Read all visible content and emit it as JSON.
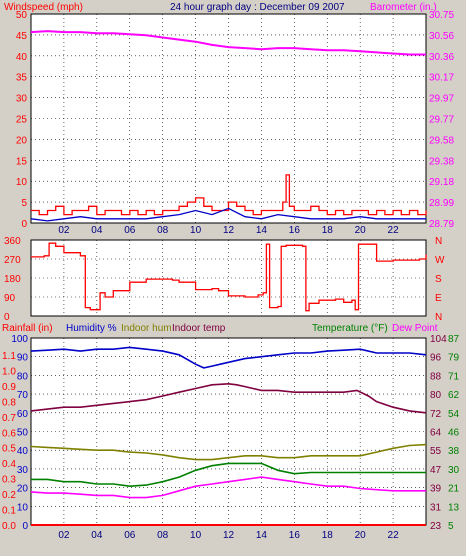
{
  "chart_data": [
    {
      "type": "line",
      "title": "24 hour graph day : December 09 2007",
      "left_axis_label": "Windspeed (mph)",
      "right_axis_label": "Barometer (in.)",
      "x_ticks": [
        "02",
        "04",
        "06",
        "08",
        "10",
        "12",
        "14",
        "16",
        "18",
        "20",
        "22"
      ],
      "left_ticks": [
        "0",
        "5",
        "10",
        "15",
        "20",
        "25",
        "30",
        "35",
        "40",
        "45",
        "50"
      ],
      "right_ticks": [
        "28.79",
        "28.99",
        "29.18",
        "29.38",
        "29.58",
        "29.77",
        "29.97",
        "30.17",
        "30.36",
        "30.56",
        "30.75"
      ],
      "left_range": [
        0,
        50
      ],
      "right_range": [
        28.79,
        30.75
      ],
      "x_range": [
        0,
        24
      ],
      "colors": {
        "wind_gust": "#ff0000",
        "wind_avg": "#0000c8",
        "barometer": "#ff00ff"
      },
      "series": [
        {
          "key": "barometer",
          "axis": "right",
          "x": [
            0,
            1,
            2,
            3,
            4,
            5,
            6,
            7,
            8,
            9,
            10,
            11,
            12,
            13,
            14,
            15,
            16,
            17,
            18,
            19,
            20,
            21,
            22,
            23,
            24
          ],
          "y": [
            30.58,
            30.59,
            30.58,
            30.58,
            30.57,
            30.57,
            30.56,
            30.55,
            30.53,
            30.51,
            30.49,
            30.46,
            30.44,
            30.43,
            30.42,
            30.43,
            30.43,
            30.42,
            30.41,
            30.41,
            30.4,
            30.39,
            30.38,
            30.37,
            30.37
          ]
        },
        {
          "key": "wind_gust",
          "axis": "left",
          "x": [
            0,
            0.5,
            1,
            1.5,
            2,
            2.5,
            3,
            3.5,
            4,
            4.5,
            5,
            5.5,
            6,
            6.5,
            7,
            7.5,
            8,
            8.5,
            9,
            9.5,
            10,
            10.5,
            11,
            11.5,
            12,
            12.5,
            13,
            13.5,
            14,
            14.5,
            15,
            15.3,
            15.5,
            15.7,
            16,
            16.5,
            17,
            17.5,
            18,
            18.5,
            19,
            19.5,
            20,
            20.5,
            21,
            21.5,
            22,
            22.5,
            23,
            23.5,
            24
          ],
          "y": [
            3,
            2,
            3,
            4,
            2,
            3,
            3,
            4,
            2,
            3,
            3,
            2,
            3,
            2,
            3,
            2,
            3,
            3,
            4,
            5,
            6,
            4,
            3,
            3,
            5,
            4,
            3,
            2,
            3,
            3,
            3,
            5,
            11.5,
            4,
            3,
            3,
            4,
            3,
            2,
            3,
            2,
            3,
            3,
            2,
            3,
            2,
            3,
            2,
            3,
            2,
            3
          ]
        },
        {
          "key": "wind_avg",
          "axis": "left",
          "x": [
            0,
            1,
            2,
            3,
            4,
            5,
            6,
            7,
            8,
            9,
            10,
            11,
            12,
            13,
            14,
            15,
            16,
            17,
            18,
            19,
            20,
            21,
            22,
            23,
            24
          ],
          "y": [
            1,
            0.5,
            1,
            1.5,
            1,
            1,
            1,
            1,
            1.5,
            2,
            3,
            2,
            3.5,
            1.5,
            1,
            2,
            1.5,
            1,
            1,
            1,
            1.5,
            1,
            1,
            1,
            1
          ]
        }
      ]
    },
    {
      "type": "line",
      "left_ticks": [
        "360",
        "270",
        "180",
        "90",
        "0"
      ],
      "right_ticks": [
        "N",
        "W",
        "S",
        "E",
        "N"
      ],
      "y_range": [
        0,
        360
      ],
      "x_range": [
        0,
        24
      ],
      "colors": {
        "direction": "#ff0000"
      },
      "series": [
        {
          "key": "wind_direction",
          "x": [
            0,
            0.8,
            1.1,
            1.5,
            2,
            3.0,
            3.3,
            3.6,
            4.2,
            4.5,
            5,
            6,
            7,
            8,
            8.6,
            9,
            10,
            11,
            11.4,
            12,
            13,
            13.8,
            14.1,
            14.3,
            14.5,
            15.0,
            15.2,
            15.5,
            16.5,
            16.7,
            16.9,
            17.5,
            18.5,
            19,
            19.5,
            19.7,
            19.9,
            21,
            22,
            23,
            23.6,
            24
          ],
          "y": [
            280,
            285,
            345,
            330,
            300,
            285,
            40,
            30,
            110,
            90,
            120,
            160,
            175,
            175,
            170,
            160,
            125,
            130,
            120,
            95,
            90,
            100,
            110,
            340,
            40,
            45,
            330,
            335,
            330,
            25,
            60,
            75,
            80,
            65,
            75,
            30,
            340,
            260,
            265,
            265,
            270,
            290
          ]
        }
      ]
    },
    {
      "type": "line",
      "left_axis_labels": {
        "rainfall": "Rainfall (in)",
        "humidity": "Humidity %",
        "indoor_hum": "Indoor hum",
        "indoor_temp": "Indoor temp"
      },
      "right_axis_labels": {
        "temperature": "Temperature (°F)",
        "dew_point": "Dew Point"
      },
      "rain_ticks": [
        "0.0",
        "0.1",
        "0.2",
        "0.3",
        "0.4",
        "0.5",
        "0.6",
        "0.7",
        "0.8",
        "0.9",
        "1.0",
        "1.1"
      ],
      "humidity_ticks": [
        "0",
        "10",
        "20",
        "30",
        "40",
        "50",
        "60",
        "70",
        "80",
        "90",
        "100"
      ],
      "indoor_temp_ticks": [
        "23",
        "31",
        "39",
        "47",
        "55",
        "64",
        "72",
        "80",
        "88",
        "96",
        "104"
      ],
      "temp_ticks": [
        "5",
        "13",
        "21",
        "30",
        "38",
        "46",
        "54",
        "62",
        "71",
        "79",
        "87"
      ],
      "x_ticks": [
        "02",
        "04",
        "06",
        "08",
        "10",
        "12",
        "14",
        "16",
        "18",
        "20",
        "22"
      ],
      "humidity_range": [
        0,
        100
      ],
      "temp_range": [
        5,
        87
      ],
      "x_range": [
        0,
        24
      ],
      "colors": {
        "rainfall": "#ff0000",
        "humidity": "#0000c8",
        "indoor_hum": "#808000",
        "indoor_temp": "#800040",
        "temperature": "#008000",
        "dew_point": "#ff00ff"
      },
      "series": [
        {
          "key": "humidity",
          "axis": "humidity",
          "x": [
            0,
            1,
            2,
            3,
            4,
            5,
            6,
            7,
            8,
            9,
            10,
            10.5,
            11,
            11.5,
            12,
            13,
            14,
            15,
            16,
            17,
            18,
            19,
            20,
            21,
            22,
            23,
            24
          ],
          "y": [
            93,
            93.5,
            94,
            93,
            94,
            94,
            95,
            94,
            93,
            91,
            86,
            84,
            85,
            86,
            87,
            89,
            90,
            91,
            92,
            92,
            93,
            93.5,
            94,
            92,
            92,
            92,
            91
          ]
        },
        {
          "key": "indoor_temp",
          "axis": "humidity",
          "x": [
            0,
            1,
            2,
            3,
            4,
            5,
            6,
            7,
            8,
            9,
            10,
            11,
            12,
            12.5,
            13,
            14,
            15,
            16,
            17,
            18,
            19,
            19.8,
            20.5,
            21,
            22,
            23,
            24
          ],
          "y": [
            61,
            62,
            63,
            63,
            64,
            65,
            66,
            67,
            69,
            71,
            73,
            75,
            75.5,
            75,
            74,
            72,
            72,
            71,
            71,
            71,
            71,
            72,
            69,
            66,
            63,
            61,
            60
          ]
        },
        {
          "key": "indoor_hum",
          "axis": "humidity",
          "x": [
            0,
            1,
            2,
            3,
            4,
            5,
            6,
            7,
            8,
            9,
            10,
            11,
            12,
            13,
            14,
            15,
            16,
            17,
            18,
            19,
            20,
            21,
            22,
            23,
            24
          ],
          "y": [
            42,
            41.5,
            41,
            40.5,
            40,
            40,
            39,
            38.5,
            37.5,
            36,
            35,
            35,
            36,
            37,
            37,
            36,
            36,
            37,
            37,
            37,
            37,
            39,
            41,
            42.5,
            43
          ]
        },
        {
          "key": "temperature",
          "axis": "temp",
          "x": [
            0,
            1,
            2,
            3,
            4,
            5,
            6,
            7,
            8,
            9,
            10,
            11,
            12,
            13,
            14,
            15,
            16,
            17,
            18,
            19,
            20,
            21,
            22,
            23,
            24
          ],
          "y": [
            25,
            25,
            24,
            24,
            23,
            23,
            22,
            22.5,
            24,
            26,
            29,
            31,
            32,
            32,
            32,
            29,
            27.5,
            28,
            28,
            28,
            28,
            28,
            28,
            28,
            28
          ]
        },
        {
          "key": "dew_point",
          "axis": "temp",
          "x": [
            0,
            1,
            2,
            3,
            4,
            5,
            6,
            7,
            8,
            9,
            10,
            11,
            12,
            13,
            14,
            15,
            16,
            17,
            18,
            19,
            20,
            21,
            22,
            23,
            24
          ],
          "y": [
            19.5,
            19,
            19,
            18.5,
            18,
            18,
            17,
            17,
            18,
            20,
            22,
            23,
            24,
            25,
            26,
            25,
            24,
            23,
            22,
            22,
            21,
            20.5,
            20,
            20,
            20
          ]
        },
        {
          "key": "rainfall",
          "axis": "rain",
          "x": [
            0,
            24
          ],
          "y": [
            0,
            0
          ]
        }
      ]
    }
  ]
}
